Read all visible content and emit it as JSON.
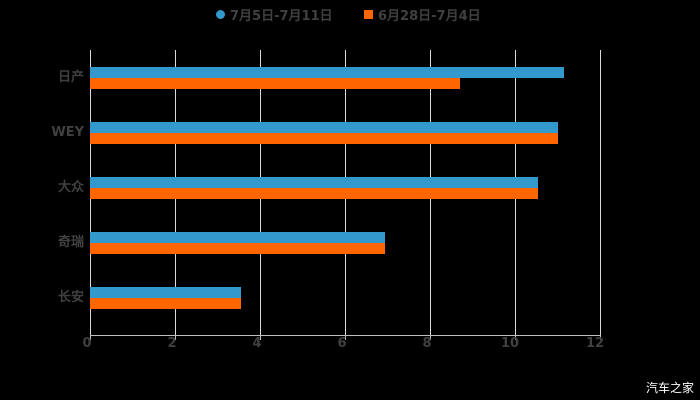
{
  "chart_data": {
    "type": "bar",
    "orientation": "horizontal",
    "title": "",
    "xlabel": "",
    "ylabel": "",
    "categories": [
      "日产",
      "WEY",
      "大众",
      "奇瑞",
      "长安"
    ],
    "series": [
      {
        "name": "7月5日-7月11日",
        "color": "#3399cc",
        "values": [
          11.15,
          11.0,
          10.55,
          6.95,
          3.55
        ]
      },
      {
        "name": "6月28日-7月4日",
        "color": "#ff6600",
        "values": [
          8.7,
          11.0,
          10.55,
          6.95,
          3.55
        ]
      }
    ],
    "xlim": [
      0,
      12
    ],
    "x_ticks": [
      0,
      2,
      4,
      6,
      8,
      10,
      12
    ],
    "grid": "vertical",
    "legend_position": "top"
  },
  "legend": {
    "items": [
      {
        "label": "7月5日-7月11日",
        "color": "#3399cc",
        "shape": "circle"
      },
      {
        "label": "6月28日-7月4日",
        "color": "#ff6600",
        "shape": "square"
      }
    ]
  },
  "axis": {
    "ticks": [
      "0",
      "2",
      "4",
      "6",
      "8",
      "10",
      "12"
    ]
  },
  "categories": [
    "日产",
    "WEY",
    "大众",
    "奇瑞",
    "长安"
  ],
  "watermark": "汽车之家"
}
